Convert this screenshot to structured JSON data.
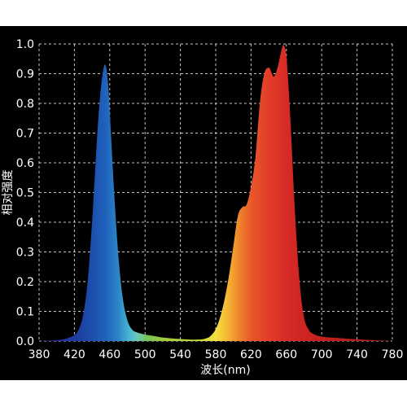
{
  "chart_data": {
    "type": "area",
    "title": "",
    "xlabel": "波长(nm)",
    "ylabel": "相对强度",
    "xlim": [
      380,
      780
    ],
    "ylim": [
      0,
      1.0
    ],
    "x_ticks": [
      "380",
      "420",
      "460",
      "500",
      "540",
      "580",
      "620",
      "660",
      "700",
      "740",
      "780"
    ],
    "y_ticks": [
      "0.0",
      "0.1",
      "0.2",
      "0.3",
      "0.4",
      "0.5",
      "0.6",
      "0.7",
      "0.8",
      "0.9",
      "1.0"
    ],
    "grid": true,
    "series": [
      {
        "x": [
          380,
          400,
          410,
          420,
          425,
          430,
          435,
          440,
          443,
          446,
          449,
          452,
          455,
          458,
          461,
          465,
          470,
          475,
          480,
          485,
          490,
          500,
          510,
          520,
          540,
          560,
          570,
          575,
          580,
          585,
          590,
          595,
          600,
          605,
          610,
          615,
          620,
          625,
          630,
          635,
          640,
          643,
          646,
          650,
          653,
          656,
          658,
          660,
          662,
          665,
          670,
          675,
          680,
          685,
          690,
          700,
          720,
          740,
          760,
          780
        ],
        "y": [
          0,
          0.003,
          0.008,
          0.02,
          0.04,
          0.09,
          0.2,
          0.4,
          0.55,
          0.7,
          0.82,
          0.9,
          0.93,
          0.87,
          0.72,
          0.5,
          0.28,
          0.14,
          0.07,
          0.04,
          0.03,
          0.022,
          0.017,
          0.012,
          0.007,
          0.005,
          0.01,
          0.02,
          0.04,
          0.08,
          0.14,
          0.22,
          0.32,
          0.42,
          0.45,
          0.46,
          0.52,
          0.62,
          0.8,
          0.9,
          0.92,
          0.905,
          0.89,
          0.92,
          0.96,
          0.995,
          0.99,
          0.96,
          0.88,
          0.72,
          0.42,
          0.2,
          0.08,
          0.04,
          0.025,
          0.015,
          0.01,
          0.006,
          0.003,
          0
        ]
      }
    ],
    "colors": {
      "panel_bg": "#000000",
      "tick_label": "#ffffff",
      "grid": "#e8e8e8",
      "spectrum": [
        [
          380,
          "#3a1ea0"
        ],
        [
          420,
          "#1e3a9c"
        ],
        [
          440,
          "#1c4fae"
        ],
        [
          455,
          "#1f62bc"
        ],
        [
          470,
          "#2d86c6"
        ],
        [
          482,
          "#49b6d4"
        ],
        [
          492,
          "#6cc9b4"
        ],
        [
          502,
          "#76c35a"
        ],
        [
          520,
          "#9ccc3a"
        ],
        [
          560,
          "#c8d838"
        ],
        [
          580,
          "#f2e040"
        ],
        [
          592,
          "#f6bb34"
        ],
        [
          605,
          "#f08a2c"
        ],
        [
          620,
          "#e8582a"
        ],
        [
          640,
          "#e23c2a"
        ],
        [
          660,
          "#d72a26"
        ],
        [
          700,
          "#c4201e"
        ],
        [
          780,
          "#a8181a"
        ]
      ]
    }
  }
}
